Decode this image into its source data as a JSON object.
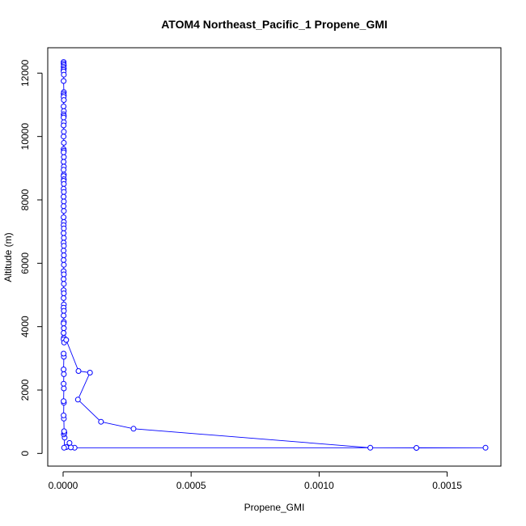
{
  "chart_data": {
    "type": "line",
    "title": "ATOM4 Northeast_Pacific_1 Propene_GMI",
    "xlabel": "Propene_GMI",
    "ylabel": "Altitude (m)",
    "xlim": [
      -6e-05,
      0.00171
    ],
    "ylim": [
      -400,
      12800
    ],
    "x_ticks": [
      0,
      0.0005,
      0.001,
      0.0015
    ],
    "x_tick_labels": [
      "0.0000",
      "0.0005",
      "0.0010",
      "0.0015"
    ],
    "y_ticks": [
      0,
      2000,
      4000,
      6000,
      8000,
      10000,
      12000
    ],
    "y_tick_labels": [
      "0",
      "2000",
      "4000",
      "6000",
      "8000",
      "10000",
      "12000"
    ],
    "grid": false,
    "legend": "none",
    "series_color": "#0000ff",
    "series": [
      {
        "points": [
          [
            2e-06,
            12350
          ],
          [
            2e-06,
            12300
          ],
          [
            3e-06,
            12250
          ],
          [
            2e-06,
            12200
          ],
          [
            3e-06,
            12150
          ],
          [
            2e-06,
            12100
          ],
          [
            2e-06,
            12050
          ],
          [
            3e-06,
            11950
          ],
          [
            2e-06,
            11750
          ],
          [
            3e-06,
            11400
          ],
          [
            2e-06,
            11350
          ],
          [
            3e-06,
            11300
          ],
          [
            2e-06,
            11250
          ],
          [
            3e-06,
            11150
          ],
          [
            2e-06,
            10950
          ],
          [
            3e-06,
            10800
          ],
          [
            2e-06,
            10700
          ],
          [
            3e-06,
            10650
          ],
          [
            2e-06,
            10600
          ],
          [
            3e-06,
            10450
          ],
          [
            2e-06,
            10350
          ],
          [
            3e-06,
            10150
          ],
          [
            2e-06,
            10000
          ],
          [
            3e-06,
            9800
          ],
          [
            2e-06,
            9600
          ],
          [
            3e-06,
            9550
          ],
          [
            2e-06,
            9500
          ],
          [
            3e-06,
            9350
          ],
          [
            2e-06,
            9200
          ],
          [
            3e-06,
            9050
          ],
          [
            2e-06,
            8950
          ],
          [
            3e-06,
            8800
          ],
          [
            2e-06,
            8750
          ],
          [
            3e-06,
            8650
          ],
          [
            2e-06,
            8600
          ],
          [
            3e-06,
            8500
          ],
          [
            2e-06,
            8350
          ],
          [
            3e-06,
            8250
          ],
          [
            2e-06,
            8100
          ],
          [
            3e-06,
            7950
          ],
          [
            2e-06,
            7800
          ],
          [
            3e-06,
            7650
          ],
          [
            2e-06,
            7450
          ],
          [
            3e-06,
            7300
          ],
          [
            2e-06,
            7200
          ],
          [
            3e-06,
            7100
          ],
          [
            2e-06,
            6950
          ],
          [
            3e-06,
            6800
          ],
          [
            2e-06,
            6650
          ],
          [
            3e-06,
            6550
          ],
          [
            2e-06,
            6400
          ],
          [
            3e-06,
            6250
          ],
          [
            2e-06,
            6100
          ],
          [
            3e-06,
            5950
          ],
          [
            2e-06,
            5750
          ],
          [
            3e-06,
            5650
          ],
          [
            2e-06,
            5500
          ],
          [
            3e-06,
            5350
          ],
          [
            2e-06,
            5150
          ],
          [
            3e-06,
            5050
          ],
          [
            2e-06,
            4900
          ],
          [
            3e-06,
            4700
          ],
          [
            2e-06,
            4600
          ],
          [
            3e-06,
            4500
          ],
          [
            2e-06,
            4350
          ],
          [
            3e-06,
            4150
          ],
          [
            2e-06,
            4100
          ],
          [
            3e-06,
            3950
          ],
          [
            2e-06,
            3800
          ],
          [
            3e-06,
            3650
          ],
          [
            2e-06,
            3600
          ],
          [
            4e-06,
            3500
          ],
          [
            1.2e-05,
            3580
          ],
          [
            6e-05,
            2600
          ],
          [
            0.000105,
            2550
          ],
          [
            5.8e-05,
            1700
          ],
          [
            0.000148,
            1000
          ],
          [
            0.000275,
            780
          ],
          [
            0.0012,
            180
          ],
          [
            0.00138,
            175
          ],
          [
            0.00165,
            180
          ],
          [
            4.5e-05,
            180
          ],
          [
            3e-05,
            190
          ],
          [
            2.5e-05,
            330
          ],
          [
            1.2e-05,
            200
          ],
          [
            4e-06,
            180
          ],
          [
            6e-06,
            500
          ],
          [
            3e-06,
            600
          ],
          [
            5e-06,
            650
          ],
          [
            4e-06,
            700
          ],
          [
            3e-06,
            1100
          ],
          [
            2e-06,
            1200
          ],
          [
            3e-06,
            1600
          ],
          [
            2e-06,
            1650
          ],
          [
            3e-06,
            2050
          ],
          [
            2e-06,
            2200
          ],
          [
            3e-06,
            2500
          ],
          [
            2e-06,
            2650
          ],
          [
            3e-06,
            3050
          ],
          [
            2e-06,
            3150
          ]
        ]
      }
    ]
  }
}
